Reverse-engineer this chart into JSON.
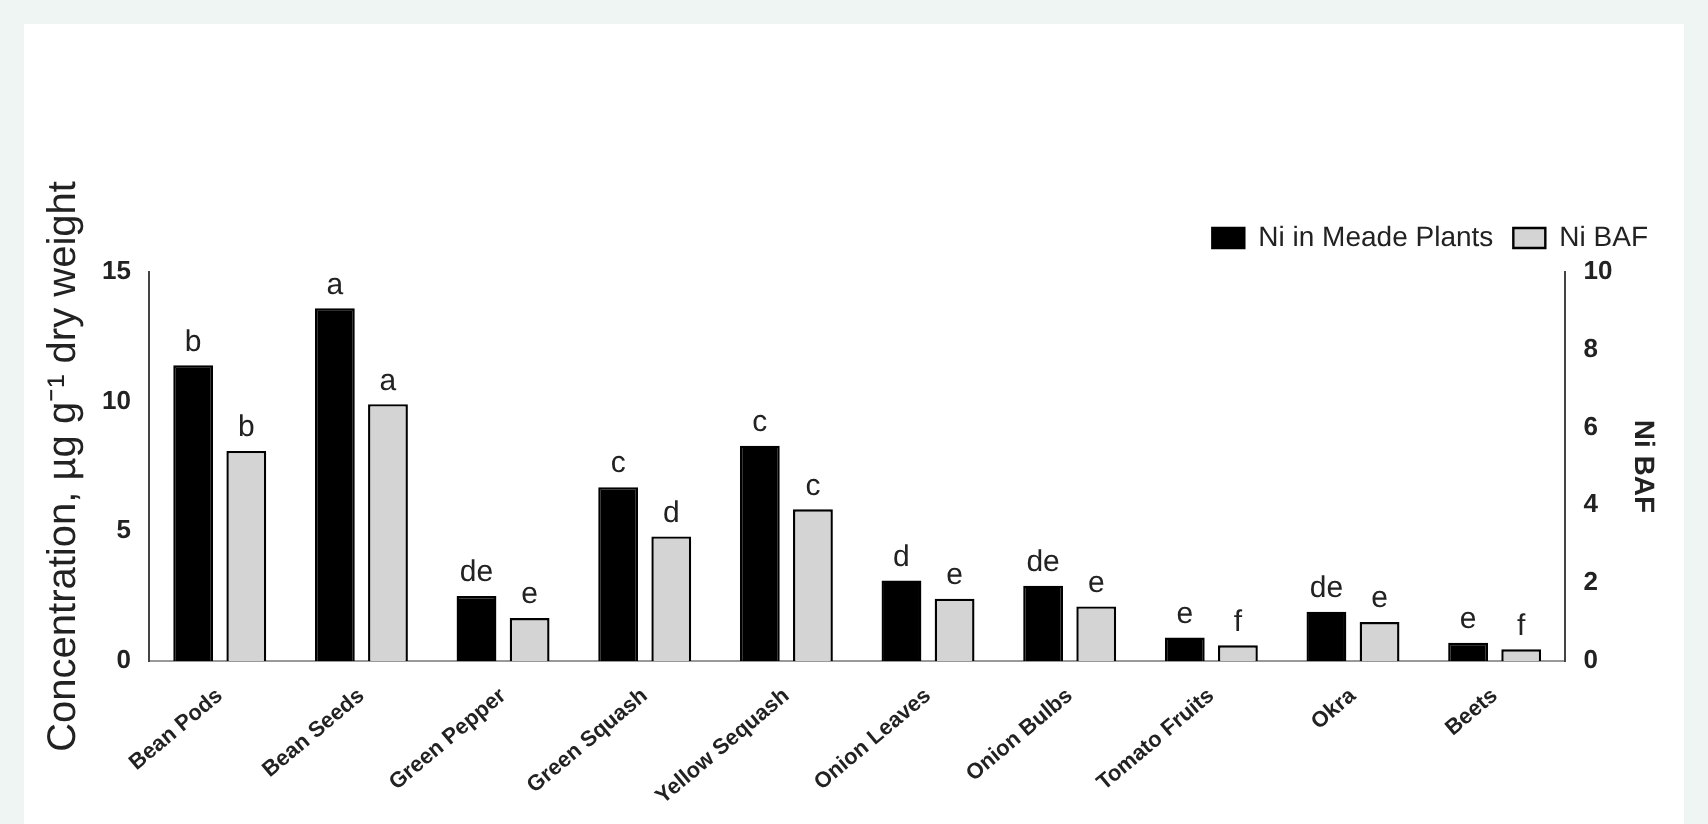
{
  "chart_data": {
    "type": "bar",
    "ylabel": "Concentration, µg g⁻¹ dry weight",
    "y2label": "Ni BAF",
    "categories": [
      "Bean Pods",
      "Bean Seeds",
      "Green Pepper",
      "Green Squash",
      "Yellow Sequash",
      "Onion Leaves",
      "Onion Bulbs",
      "Tomato Fruits",
      "Okra",
      "Beets"
    ],
    "series": [
      {
        "name": "Ni in Meade Plants",
        "color": "#000000",
        "values": [
          11.4,
          13.6,
          2.5,
          6.7,
          8.3,
          3.1,
          2.9,
          0.9,
          1.9,
          0.7
        ],
        "value_labels": [
          "b",
          "a",
          "de",
          "c",
          "c",
          "d",
          "de",
          "e",
          "de",
          "e"
        ]
      },
      {
        "name": "Ni BAF",
        "color": "#d4d4d4",
        "axis": "y2",
        "values": [
          5.4,
          6.6,
          1.1,
          3.2,
          3.9,
          1.6,
          1.4,
          0.4,
          1.0,
          0.3
        ],
        "value_labels": [
          "b",
          "a",
          "e",
          "d",
          "c",
          "e",
          "e",
          "f",
          "e",
          "f"
        ]
      }
    ],
    "ylim": [
      0,
      15
    ],
    "yticks": [
      0,
      5,
      10,
      15
    ],
    "y2lim": [
      0,
      10
    ],
    "y2ticks": [
      0,
      2,
      4,
      6,
      8,
      10
    ],
    "grid": false,
    "legend": "top right"
  }
}
